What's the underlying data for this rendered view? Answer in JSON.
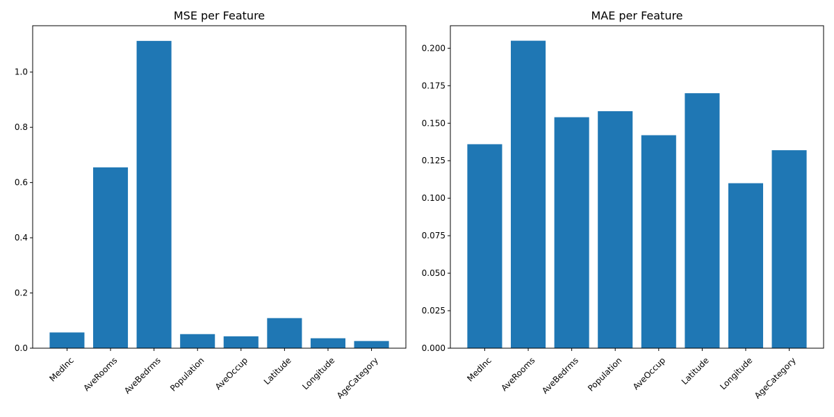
{
  "colors": {
    "bar": "#1f77b4",
    "axis": "#000000",
    "background": "#ffffff"
  },
  "chart_data": [
    {
      "type": "bar",
      "title": "MSE per Feature",
      "xlabel": "",
      "ylabel": "",
      "categories": [
        "MedInc",
        "AveRooms",
        "AveBedrms",
        "Population",
        "AveOccup",
        "Latitude",
        "Longitude",
        "AgeCategory"
      ],
      "values": [
        0.057,
        0.655,
        1.113,
        0.051,
        0.043,
        0.109,
        0.036,
        0.026
      ],
      "ylim": [
        0,
        1.168
      ],
      "yticks": [
        0.0,
        0.2,
        0.4,
        0.6,
        0.8,
        1.0
      ],
      "ytick_labels": [
        "0.0",
        "0.2",
        "0.4",
        "0.6",
        "0.8",
        "1.0"
      ],
      "grid": false
    },
    {
      "type": "bar",
      "title": "MAE per Feature",
      "xlabel": "",
      "ylabel": "",
      "categories": [
        "MedInc",
        "AveRooms",
        "AveBedrms",
        "Population",
        "AveOccup",
        "Latitude",
        "Longitude",
        "AgeCategory"
      ],
      "values": [
        0.136,
        0.205,
        0.154,
        0.158,
        0.142,
        0.17,
        0.11,
        0.132
      ],
      "ylim": [
        0,
        0.215
      ],
      "yticks": [
        0.0,
        0.025,
        0.05,
        0.075,
        0.1,
        0.125,
        0.15,
        0.175,
        0.2
      ],
      "ytick_labels": [
        "0.000",
        "0.025",
        "0.050",
        "0.075",
        "0.100",
        "0.125",
        "0.150",
        "0.175",
        "0.200"
      ],
      "grid": false
    }
  ]
}
